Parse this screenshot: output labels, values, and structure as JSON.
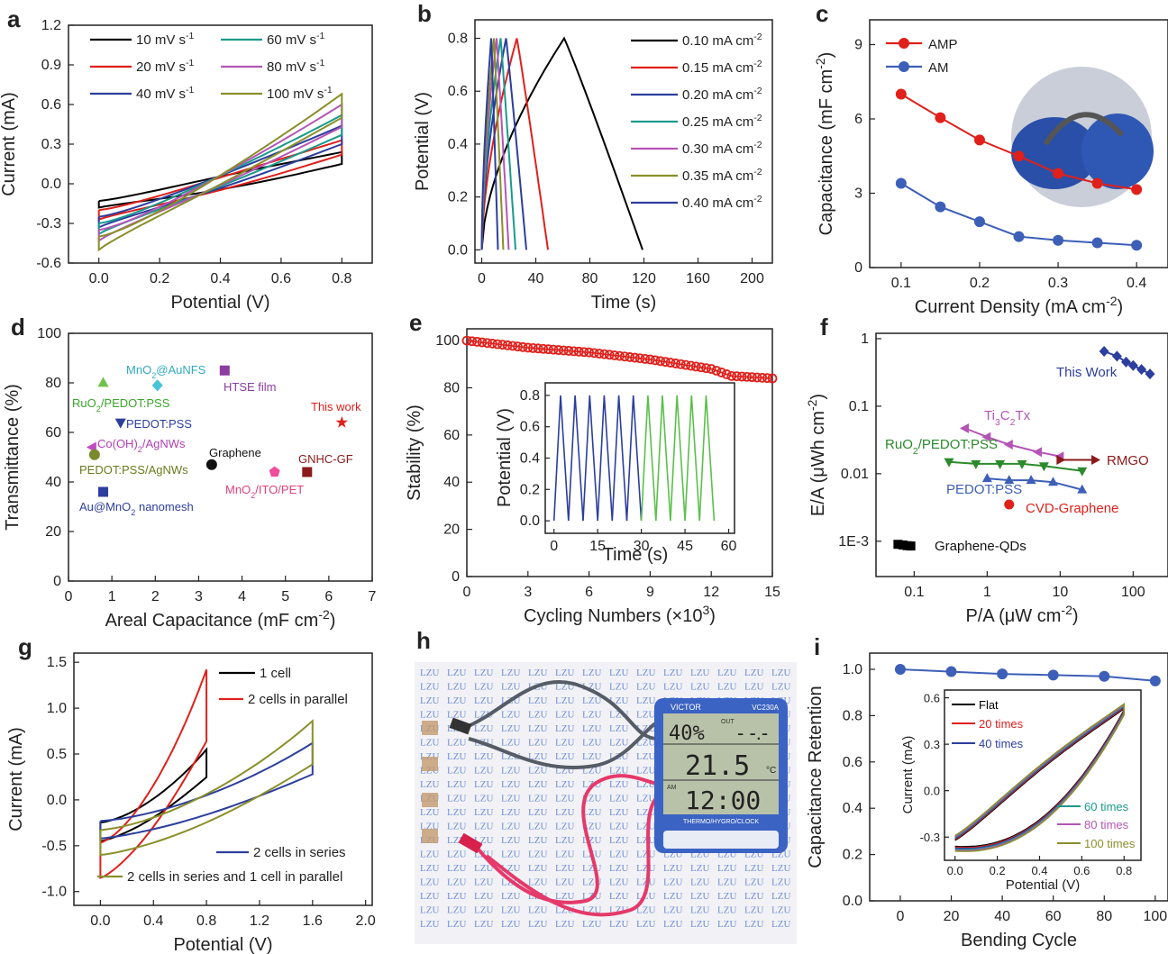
{
  "panels": {
    "a": {
      "letter": "a",
      "type": "line",
      "xlabel": "Potential (V)",
      "ylabel": "Current (mA)",
      "xlim": [
        -0.1,
        0.9
      ],
      "ylim": [
        -0.6,
        1.2
      ],
      "xticks": [
        0.0,
        0.2,
        0.4,
        0.6,
        0.8
      ],
      "yticks": [
        -0.6,
        -0.3,
        0.0,
        0.3,
        0.6,
        0.9,
        1.2
      ],
      "series": [
        {
          "name": "10 mV s-1",
          "color": "#000000",
          "upper": [
            -0.13,
            0.24
          ],
          "lower": [
            -0.18,
            0.15
          ]
        },
        {
          "name": "20 mV s-1",
          "color": "#e0201b",
          "upper": [
            -0.2,
            0.33
          ],
          "lower": [
            -0.27,
            0.22
          ]
        },
        {
          "name": "40 mV s-1",
          "color": "#2c3e9e",
          "upper": [
            -0.25,
            0.44
          ],
          "lower": [
            -0.33,
            0.3
          ]
        },
        {
          "name": "60 mV s-1",
          "color": "#1a9a8c",
          "upper": [
            -0.3,
            0.52
          ],
          "lower": [
            -0.38,
            0.37
          ]
        },
        {
          "name": "80 mV s-1",
          "color": "#b455b6",
          "upper": [
            -0.35,
            0.6
          ],
          "lower": [
            -0.43,
            0.43
          ]
        },
        {
          "name": "100 mV s-1",
          "color": "#8a8f2a",
          "upper": [
            -0.4,
            0.68
          ],
          "lower": [
            -0.5,
            0.5
          ]
        }
      ]
    },
    "b": {
      "letter": "b",
      "type": "line",
      "xlabel": "Time (s)",
      "ylabel": "Potential (V)",
      "xlim": [
        -5,
        215
      ],
      "ylim": [
        -0.05,
        0.87
      ],
      "xticks": [
        0,
        40,
        80,
        120,
        160,
        200
      ],
      "yticks": [
        0.0,
        0.2,
        0.4,
        0.6,
        0.8
      ],
      "series": [
        {
          "name": "0.10 mA cm-2",
          "color": "#000000",
          "t_peak": 61,
          "t_end": 119
        },
        {
          "name": "0.15 mA cm-2",
          "color": "#e0201b",
          "t_peak": 26,
          "t_end": 49
        },
        {
          "name": "0.20 mA cm-2",
          "color": "#2c3e9e",
          "t_peak": 18,
          "t_end": 33
        },
        {
          "name": "0.25 mA cm-2",
          "color": "#1a9a8c",
          "t_peak": 14,
          "t_end": 25
        },
        {
          "name": "0.30 mA cm-2",
          "color": "#b455b6",
          "t_peak": 11,
          "t_end": 20
        },
        {
          "name": "0.35 mA cm-2",
          "color": "#8a8f2a",
          "t_peak": 9,
          "t_end": 16
        },
        {
          "name": "0.40 mA cm-2",
          "color": "#2c3e9e",
          "t_peak": 7,
          "t_end": 12
        }
      ]
    },
    "c": {
      "letter": "c",
      "type": "line",
      "xlabel": "Current Density (mA cm-2)",
      "ylabel": "Capacitance (mF cm-2)",
      "xlim": [
        0.06,
        0.44
      ],
      "ylim": [
        0,
        10
      ],
      "xticks": [
        0.1,
        0.2,
        0.3,
        0.4
      ],
      "yticks": [
        0,
        3,
        6,
        9
      ],
      "x": [
        0.1,
        0.15,
        0.2,
        0.25,
        0.3,
        0.35,
        0.4
      ],
      "series": [
        {
          "name": "AMP",
          "color": "#e0201b",
          "values": [
            7.0,
            6.05,
            5.15,
            4.5,
            3.8,
            3.4,
            3.15
          ]
        },
        {
          "name": "AM",
          "color": "#3d5fb8",
          "values": [
            3.4,
            2.45,
            1.85,
            1.25,
            1.1,
            1.0,
            0.9
          ]
        }
      ]
    },
    "d": {
      "letter": "d",
      "type": "scatter",
      "xlabel": "Areal Capacitance (mF cm-2)",
      "ylabel": "Transmittance (%)",
      "xlim": [
        0,
        7
      ],
      "ylim": [
        0,
        100
      ],
      "xticks": [
        0,
        1,
        2,
        3,
        4,
        5,
        6,
        7
      ],
      "yticks": [
        0,
        20,
        40,
        60,
        80,
        100
      ],
      "points": [
        {
          "label": "RuO2/PEDOT:PSS",
          "x": 0.8,
          "y": 80,
          "color": "#6fc24a",
          "marker": "triangle-up"
        },
        {
          "label": "MnO2@AuNFS",
          "x": 2.05,
          "y": 79,
          "color": "#48c4d8",
          "marker": "diamond"
        },
        {
          "label": "HTSE film",
          "x": 3.6,
          "y": 85,
          "color": "#8b3da0",
          "marker": "square"
        },
        {
          "label": "PEDOT:PSS",
          "x": 1.2,
          "y": 64,
          "color": "#2c3e9e",
          "marker": "triangle-down"
        },
        {
          "label": "This work",
          "x": 6.3,
          "y": 64,
          "color": "#e0201b",
          "marker": "star"
        },
        {
          "label": "Co(OH)2/AgNWs",
          "x": 0.55,
          "y": 54,
          "color": "#c04cc4",
          "marker": "triangle-left"
        },
        {
          "label": "PEDOT:PSS/AgNWs",
          "x": 0.6,
          "y": 51,
          "color": "#7a8a2a",
          "marker": "circle"
        },
        {
          "label": "Graphene",
          "x": 3.3,
          "y": 47,
          "color": "#111111",
          "marker": "circle"
        },
        {
          "label": "GNHC-GF",
          "x": 5.5,
          "y": 44,
          "color": "#8b1a1a",
          "marker": "square"
        },
        {
          "label": "MnO2/ITO/PET",
          "x": 4.75,
          "y": 44,
          "color": "#ee4e9a",
          "marker": "pentagon"
        },
        {
          "label": "Au@MnO2 nanomesh",
          "x": 0.8,
          "y": 36,
          "color": "#2c3e9e",
          "marker": "square"
        }
      ]
    },
    "e": {
      "letter": "e",
      "type": "line",
      "xlabel": "Cycling Numbers (×10³)",
      "ylabel": "Stability (%)",
      "xlim": [
        0,
        15
      ],
      "ylim": [
        0,
        105
      ],
      "xticks": [
        0,
        3,
        6,
        9,
        12,
        15
      ],
      "yticks": [
        0,
        20,
        40,
        60,
        80,
        100
      ],
      "x": [
        0,
        3,
        6,
        9,
        12,
        13,
        15
      ],
      "values": [
        100,
        97,
        95,
        92,
        88,
        85,
        84
      ],
      "color": "#e0201b",
      "inset": {
        "xlabel": "Time (s)",
        "ylabel": "Potential (V)",
        "xlim": [
          -3,
          62
        ],
        "ylim": [
          -0.08,
          0.88
        ],
        "xticks": [
          0,
          15,
          30,
          45,
          60
        ],
        "yticks": [
          0.0,
          0.2,
          0.4,
          0.6,
          0.8
        ],
        "period": 5,
        "cycles": 11,
        "colors": [
          "#2c3e9e",
          "#5ac04a"
        ]
      }
    },
    "f": {
      "letter": "f",
      "type": "scatter",
      "xlabel": "P/A (μW cm-2)",
      "ylabel": "E/A (μWh cm-2)",
      "xscale": "log",
      "yscale": "log",
      "xlim": [
        0.03,
        300
      ],
      "ylim": [
        0.0003,
        1.2
      ],
      "xticks": [
        0.1,
        1,
        10,
        100
      ],
      "xticklabels": [
        "0.1",
        "1",
        "10",
        "100"
      ],
      "yticks": [
        0.001,
        0.01,
        0.1,
        1
      ],
      "yticklabels": [
        "1E-3",
        "0.01",
        "0.1",
        "1"
      ],
      "series": [
        {
          "name": "This Work",
          "color": "#2c3e9e",
          "marker": "diamond",
          "points": [
            [
              40,
              0.65
            ],
            [
              60,
              0.55
            ],
            [
              80,
              0.45
            ],
            [
              100,
              0.4
            ],
            [
              130,
              0.35
            ],
            [
              170,
              0.3
            ]
          ]
        },
        {
          "name": "Ti3C2Tx",
          "color": "#b455b6",
          "marker": "triangle-left",
          "points": [
            [
              0.5,
              0.047
            ],
            [
              1,
              0.035
            ],
            [
              2,
              0.027
            ],
            [
              5,
              0.021
            ],
            [
              10,
              0.018
            ]
          ]
        },
        {
          "name": "RuO2/PEDOT:PSS",
          "color": "#2b8a2b",
          "marker": "triangle-down",
          "points": [
            [
              0.3,
              0.015
            ],
            [
              0.7,
              0.014
            ],
            [
              1.5,
              0.014
            ],
            [
              3,
              0.014
            ],
            [
              6,
              0.013
            ],
            [
              20,
              0.011
            ]
          ]
        },
        {
          "name": "RMGO",
          "color": "#8b1a1a",
          "marker": "triangle-right",
          "points": [
            [
              10,
              0.016
            ],
            [
              30,
              0.016
            ]
          ]
        },
        {
          "name": "PEDOT:PSS",
          "color": "#3d5fb8",
          "marker": "triangle-up",
          "points": [
            [
              1,
              0.0085
            ],
            [
              2,
              0.008
            ],
            [
              4,
              0.008
            ],
            [
              8,
              0.0075
            ],
            [
              20,
              0.0058
            ]
          ]
        },
        {
          "name": "CVD-Graphene",
          "color": "#e0201b",
          "marker": "circle",
          "points": [
            [
              2,
              0.0035
            ]
          ]
        },
        {
          "name": "Graphene-QDs",
          "color": "#000000",
          "marker": "square",
          "points": [
            [
              0.06,
              0.0009
            ],
            [
              0.07,
              0.00088
            ],
            [
              0.08,
              0.00086
            ],
            [
              0.09,
              0.00085
            ]
          ]
        }
      ]
    },
    "g": {
      "letter": "g",
      "type": "line",
      "xlabel": "Potential (V)",
      "ylabel": "Current (mA)",
      "xlim": [
        -0.2,
        2.05
      ],
      "ylim": [
        -1.15,
        1.6
      ],
      "xticks": [
        0.0,
        0.4,
        0.8,
        1.2,
        1.6,
        2.0
      ],
      "yticks": [
        -1.0,
        -0.5,
        0.0,
        0.5,
        1.0,
        1.5
      ],
      "series": [
        {
          "name": "1 cell",
          "color": "#000000",
          "vmax": 0.8,
          "imin": -0.45,
          "imax": 0.55,
          "lowpeak": -0.15
        },
        {
          "name": "2 cells in parallel",
          "color": "#e0201b",
          "vmax": 0.8,
          "imin": -0.85,
          "imax": 1.42,
          "lowpeak": -0.3
        },
        {
          "name": "2 cells in series",
          "color": "#2c3e9e",
          "vmax": 1.6,
          "imin": -0.42,
          "imax": 0.62,
          "lowpeak": -0.15
        },
        {
          "name": "2 cells in series and 1 cell in parallel",
          "color": "#8a8f2a",
          "vmax": 1.6,
          "imin": -0.6,
          "imax": 0.86,
          "lowpeak": -0.25
        }
      ]
    },
    "h": {
      "letter": "h",
      "type": "photo",
      "pattern_text": "LZU",
      "display_brand": "VICTOR",
      "display_model": "VC230A",
      "display_top": "40%",
      "display_temp": "21.5",
      "display_unit": "°C",
      "display_time": "12:00",
      "display_am": "AM",
      "display_out": "OUT",
      "display_footer": "THERMO/HYGRO/CLOCK"
    },
    "i": {
      "letter": "i",
      "type": "line",
      "xlabel": "Bending Cycle",
      "ylabel": "Capacitance Retention",
      "xlim": [
        -12,
        105
      ],
      "ylim": [
        0,
        1.07
      ],
      "xticks": [
        0,
        20,
        40,
        60,
        80,
        100
      ],
      "yticks": [
        0.0,
        0.2,
        0.4,
        0.6,
        0.8,
        1.0
      ],
      "x": [
        0,
        20,
        40,
        60,
        80,
        100
      ],
      "values": [
        1.0,
        0.99,
        0.98,
        0.975,
        0.97,
        0.95
      ],
      "color": "#3d5fb8",
      "inset": {
        "xlabel": "Potential (V)",
        "ylabel": "Current (mA)",
        "xlim": [
          -0.05,
          0.88
        ],
        "ylim": [
          -0.45,
          0.65
        ],
        "xticks": [
          0.0,
          0.2,
          0.4,
          0.6,
          0.8
        ],
        "yticks": [
          -0.3,
          0.0,
          0.3,
          0.6
        ],
        "series": [
          {
            "name": "Flat",
            "color": "#000000"
          },
          {
            "name": "20 times",
            "color": "#e0201b"
          },
          {
            "name": "40 times",
            "color": "#2c3e9e"
          },
          {
            "name": "60 times",
            "color": "#1a9a8c"
          },
          {
            "name": "80 times",
            "color": "#b455b6"
          },
          {
            "name": "100 times",
            "color": "#8a8f2a"
          }
        ]
      }
    }
  }
}
